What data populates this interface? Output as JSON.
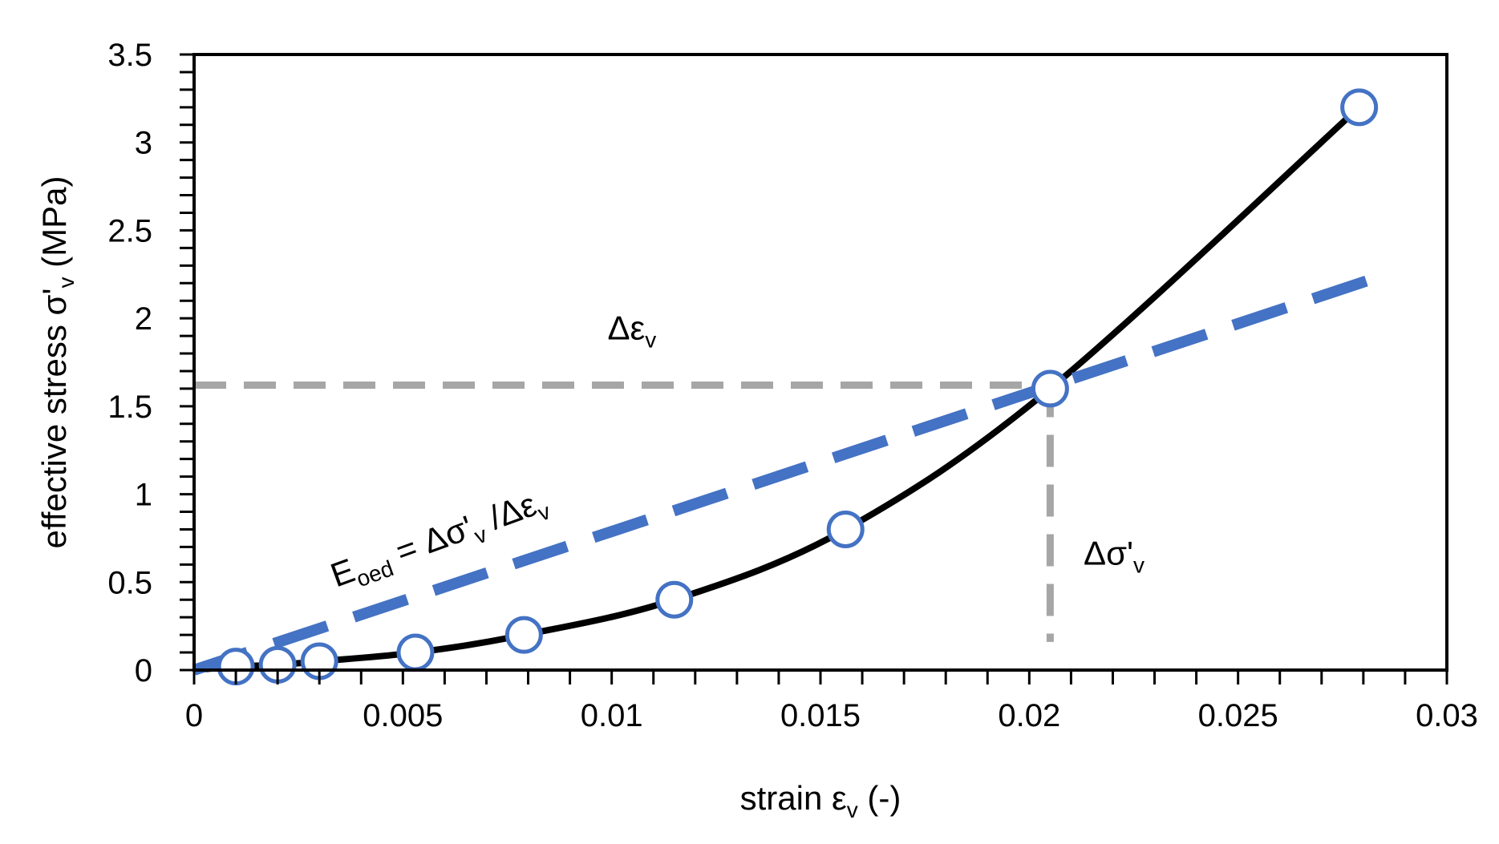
{
  "chart_data": {
    "type": "scatter",
    "xlabel": {
      "main": "strain ε",
      "sub": "v",
      "tail": " (-)"
    },
    "ylabel": {
      "main": "effective stress σ'",
      "sub": "v",
      "tail": " (MPa)"
    },
    "xlim": [
      0,
      0.03
    ],
    "ylim": [
      0,
      3.5
    ],
    "x_ticks": [
      0,
      0.005,
      0.01,
      0.015,
      0.02,
      0.025,
      0.03
    ],
    "x_tick_labels": [
      "0",
      "0.005",
      "0.01",
      "0.015",
      "0.02",
      "0.025",
      "0.03"
    ],
    "x_minor_step": 0.001,
    "y_ticks": [
      0,
      0.5,
      1,
      1.5,
      2,
      2.5,
      3,
      3.5
    ],
    "y_tick_labels": [
      "0",
      "0.5",
      "1",
      "1.5",
      "2",
      "2.5",
      "3",
      "3.5"
    ],
    "y_minor_step": 0.1,
    "grid": false,
    "legend": "none",
    "series": [
      {
        "name": "measured points",
        "kind": "markers",
        "color": "#4472C4",
        "points": [
          [
            0.001,
            0.02
          ],
          [
            0.002,
            0.03
          ],
          [
            0.003,
            0.05
          ],
          [
            0.0053,
            0.1
          ],
          [
            0.0079,
            0.2
          ],
          [
            0.0115,
            0.4
          ],
          [
            0.0156,
            0.8
          ],
          [
            0.0205,
            1.6
          ],
          [
            0.0279,
            3.2
          ]
        ]
      },
      {
        "name": "stress-strain curve",
        "kind": "line",
        "color": "#000000",
        "points": [
          [
            0.0,
            0.0
          ],
          [
            0.001,
            0.02
          ],
          [
            0.002,
            0.03
          ],
          [
            0.003,
            0.05
          ],
          [
            0.0053,
            0.1
          ],
          [
            0.0079,
            0.2
          ],
          [
            0.0115,
            0.4
          ],
          [
            0.0156,
            0.8
          ],
          [
            0.0205,
            1.6
          ],
          [
            0.0279,
            3.2
          ]
        ]
      },
      {
        "name": "secant modulus line",
        "kind": "dashed-line",
        "color": "#4472C4",
        "points": [
          [
            0.0,
            0.0
          ],
          [
            0.0283,
            2.23
          ]
        ]
      },
      {
        "name": "horizontal reference",
        "kind": "dashed-line",
        "color": "#A6A6A6",
        "points": [
          [
            0.0,
            1.62
          ],
          [
            0.0205,
            1.62
          ]
        ]
      },
      {
        "name": "vertical reference",
        "kind": "dashed-line",
        "color": "#A6A6A6",
        "points": [
          [
            0.0205,
            1.62
          ],
          [
            0.0205,
            0.16
          ]
        ]
      }
    ],
    "annotations": {
      "delta_eps": {
        "main": "Δε",
        "sub": "v",
        "at": [
          0.0099,
          1.88
        ]
      },
      "delta_sigma": {
        "main": "Δσ'",
        "sub": "v",
        "at": [
          0.0213,
          0.6
        ]
      },
      "eoed": {
        "e": "E",
        "oed_sub": "oed",
        "mid": " = Δσ'",
        "v_sub": "v",
        "tail": " /Δε",
        "v2_sub": "v",
        "at": [
          0.0034,
          0.47
        ],
        "angle": -20
      }
    }
  }
}
